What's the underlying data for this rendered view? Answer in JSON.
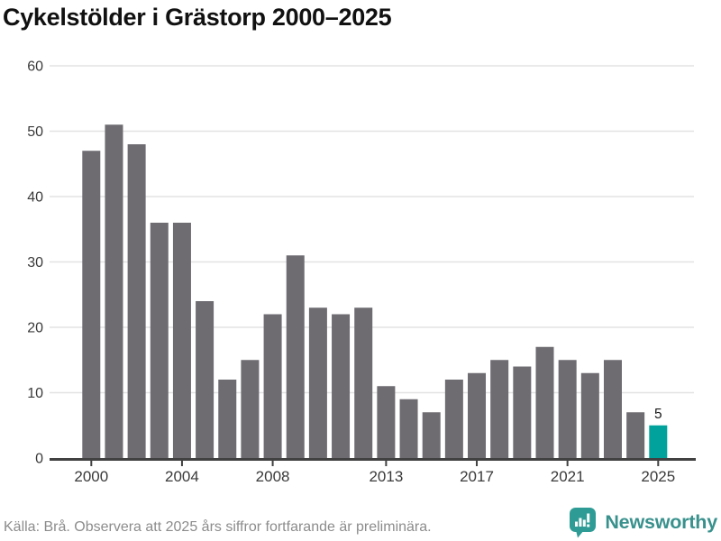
{
  "title": "Cykelstölder i Grästorp 2000–2025",
  "footer": {
    "source_note": "Källa: Brå. Observera att 2025 års siffror fortfarande är preliminära."
  },
  "branding": {
    "name": "Newsworthy",
    "logo_icon": "speech-bubble-bar-chart-icon",
    "logo_color": "#2e9c95",
    "logo_glyph_color": "#ffffff",
    "text_color": "#39918d"
  },
  "chart_data": {
    "type": "bar",
    "title": "Cykelstölder i Grästorp 2000–2025",
    "categories": [
      "2000",
      "2001",
      "2002",
      "2003",
      "2004",
      "2005",
      "2006",
      "2007",
      "2008",
      "2009",
      "2010",
      "2011",
      "2012",
      "2013",
      "2014",
      "2015",
      "2016",
      "2017",
      "2018",
      "2019",
      "2020",
      "2021",
      "2022",
      "2023",
      "2024",
      "2025"
    ],
    "values": [
      47,
      51,
      48,
      36,
      36,
      24,
      12,
      15,
      22,
      31,
      23,
      22,
      23,
      11,
      9,
      7,
      12,
      13,
      15,
      14,
      17,
      15,
      13,
      15,
      7,
      5
    ],
    "highlight_index": 25,
    "annotations": [
      {
        "category": "2025",
        "text": "5"
      }
    ],
    "x_tick_labels": [
      "2000",
      "2004",
      "2008",
      "2013",
      "2017",
      "2021",
      "2025"
    ],
    "y_ticks": [
      0,
      10,
      20,
      30,
      40,
      50,
      60
    ],
    "ylim": [
      0,
      60
    ],
    "grid": "horizontal",
    "legend": "none",
    "bar_color": "#6e6b71",
    "highlight_color": "#00a29b",
    "grid_color": "#e3e3e3",
    "axis_color": "#414141",
    "axis_text_color": "#3a3a3a",
    "annotation_color": "#1a1a1a"
  }
}
